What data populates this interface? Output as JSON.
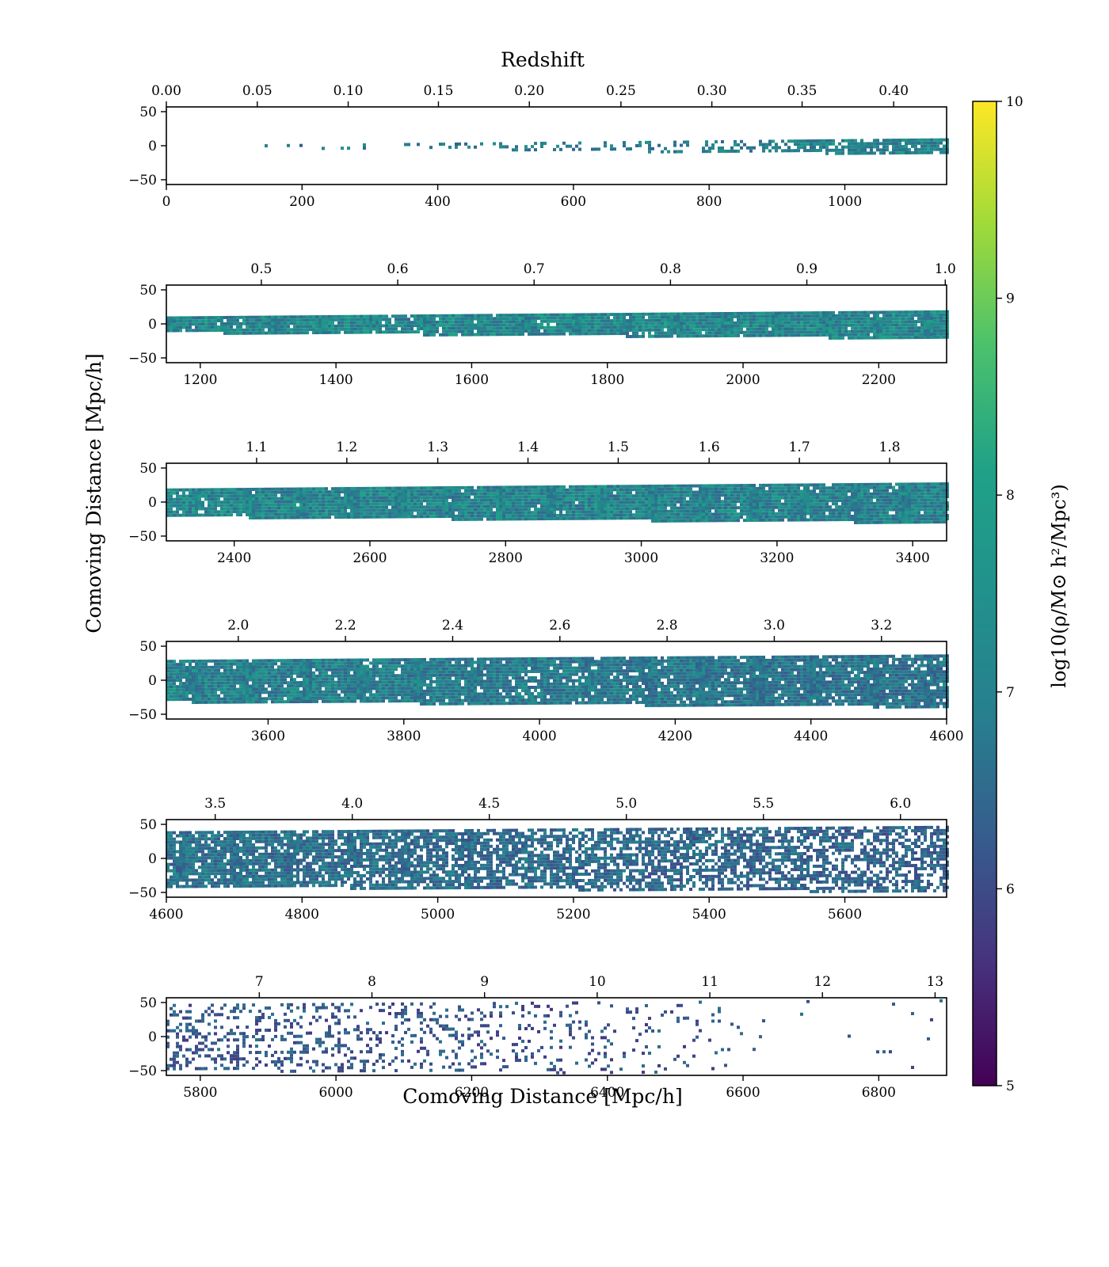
{
  "figure": {
    "top_axis_label": "Redshift",
    "y_axis_label": "Comoving Distance [Mpc/h]",
    "x_axis_label": "Comoving Distance [Mpc/h]",
    "colorbar": {
      "label": "log10(ρ/M⊙ h²/Mpc³)",
      "colormap": "viridis",
      "range": [
        5,
        10
      ],
      "ticks": [
        "5",
        "6",
        "7",
        "8",
        "9",
        "10"
      ]
    }
  },
  "chart_data": [
    {
      "type": "heatmap",
      "panel": 1,
      "xlim": [
        0,
        1150
      ],
      "ylim": [
        -57,
        57
      ],
      "x_ticks": [
        {
          "v": 0,
          "l": "0"
        },
        {
          "v": 200,
          "l": "200"
        },
        {
          "v": 400,
          "l": "400"
        },
        {
          "v": 600,
          "l": "600"
        },
        {
          "v": 800,
          "l": "800"
        },
        {
          "v": 1000,
          "l": "1000"
        }
      ],
      "y_ticks": [
        {
          "v": 50,
          "l": "50"
        },
        {
          "v": 0,
          "l": "0"
        },
        {
          "v": -50,
          "l": "−50"
        }
      ],
      "top_ticks": [
        {
          "v": 0,
          "l": "0.00"
        },
        {
          "v": 134,
          "l": "0.05"
        },
        {
          "v": 268,
          "l": "0.10"
        },
        {
          "v": 401,
          "l": "0.15"
        },
        {
          "v": 535,
          "l": "0.20"
        },
        {
          "v": 670,
          "l": "0.25"
        },
        {
          "v": 804,
          "l": "0.30"
        },
        {
          "v": 937,
          "l": "0.35"
        },
        {
          "v": 1072,
          "l": "0.40"
        }
      ],
      "band_start": 70,
      "band_halfwidth": [
        1,
        11
      ],
      "fill": [
        0.05,
        0.95
      ],
      "mean_log_density": [
        6.9,
        7.3
      ],
      "gap": [
        770,
        785
      ]
    },
    {
      "type": "heatmap",
      "panel": 2,
      "xlim": [
        1150,
        2300
      ],
      "ylim": [
        -57,
        57
      ],
      "x_ticks": [
        {
          "v": 1200,
          "l": "1200"
        },
        {
          "v": 1400,
          "l": "1400"
        },
        {
          "v": 1600,
          "l": "1600"
        },
        {
          "v": 1800,
          "l": "1800"
        },
        {
          "v": 2000,
          "l": "2000"
        },
        {
          "v": 2200,
          "l": "2200"
        }
      ],
      "y_ticks": [
        {
          "v": 50,
          "l": "50"
        },
        {
          "v": 0,
          "l": "0"
        },
        {
          "v": -50,
          "l": "−50"
        }
      ],
      "top_ticks": [
        {
          "v": 1290,
          "l": "0.5"
        },
        {
          "v": 1491,
          "l": "0.6"
        },
        {
          "v": 1692,
          "l": "0.7"
        },
        {
          "v": 1893,
          "l": "0.8"
        },
        {
          "v": 2094,
          "l": "0.9"
        },
        {
          "v": 2298,
          "l": "1.0"
        }
      ],
      "band_start": 1150,
      "band_halfwidth": [
        11,
        20
      ],
      "fill": [
        0.95,
        0.97
      ],
      "mean_log_density": [
        7.3,
        7.3
      ]
    },
    {
      "type": "heatmap",
      "panel": 3,
      "xlim": [
        2300,
        3450
      ],
      "ylim": [
        -57,
        57
      ],
      "x_ticks": [
        {
          "v": 2400,
          "l": "2400"
        },
        {
          "v": 2600,
          "l": "2600"
        },
        {
          "v": 2800,
          "l": "2800"
        },
        {
          "v": 3000,
          "l": "3000"
        },
        {
          "v": 3200,
          "l": "3200"
        },
        {
          "v": 3400,
          "l": "3400"
        }
      ],
      "y_ticks": [
        {
          "v": 50,
          "l": "50"
        },
        {
          "v": 0,
          "l": "0"
        },
        {
          "v": -50,
          "l": "−50"
        }
      ],
      "top_ticks": [
        {
          "v": 2433,
          "l": "1.1"
        },
        {
          "v": 2566,
          "l": "1.2"
        },
        {
          "v": 2700,
          "l": "1.3"
        },
        {
          "v": 2833,
          "l": "1.4"
        },
        {
          "v": 2966,
          "l": "1.5"
        },
        {
          "v": 3100,
          "l": "1.6"
        },
        {
          "v": 3233,
          "l": "1.7"
        },
        {
          "v": 3366,
          "l": "1.8"
        }
      ],
      "band_start": 2300,
      "band_halfwidth": [
        20,
        29
      ],
      "fill": [
        0.97,
        0.97
      ],
      "mean_log_density": [
        7.3,
        7.2
      ]
    },
    {
      "type": "heatmap",
      "panel": 4,
      "xlim": [
        3450,
        4600
      ],
      "ylim": [
        -57,
        57
      ],
      "x_ticks": [
        {
          "v": 3600,
          "l": "3600"
        },
        {
          "v": 3800,
          "l": "3800"
        },
        {
          "v": 4000,
          "l": "4000"
        },
        {
          "v": 4200,
          "l": "4200"
        },
        {
          "v": 4400,
          "l": "4400"
        },
        {
          "v": 4600,
          "l": "4600"
        }
      ],
      "y_ticks": [
        {
          "v": 50,
          "l": "50"
        },
        {
          "v": 0,
          "l": "0"
        },
        {
          "v": -50,
          "l": "−50"
        }
      ],
      "top_ticks": [
        {
          "v": 3556,
          "l": "2.0"
        },
        {
          "v": 3714,
          "l": "2.2"
        },
        {
          "v": 3872,
          "l": "2.4"
        },
        {
          "v": 4030,
          "l": "2.6"
        },
        {
          "v": 4188,
          "l": "2.8"
        },
        {
          "v": 4346,
          "l": "3.0"
        },
        {
          "v": 4504,
          "l": "3.2"
        }
      ],
      "band_start": 3450,
      "band_halfwidth": [
        30,
        38
      ],
      "fill": [
        0.97,
        0.9
      ],
      "mean_log_density": [
        7.2,
        6.9
      ]
    },
    {
      "type": "heatmap",
      "panel": 5,
      "xlim": [
        4600,
        5750
      ],
      "ylim": [
        -57,
        57
      ],
      "x_ticks": [
        {
          "v": 4600,
          "l": "4600"
        },
        {
          "v": 4800,
          "l": "4800"
        },
        {
          "v": 5000,
          "l": "5000"
        },
        {
          "v": 5200,
          "l": "5200"
        },
        {
          "v": 5400,
          "l": "5400"
        },
        {
          "v": 5600,
          "l": "5600"
        }
      ],
      "y_ticks": [
        {
          "v": 50,
          "l": "50"
        },
        {
          "v": 0,
          "l": "0"
        },
        {
          "v": -50,
          "l": "−50"
        }
      ],
      "top_ticks": [
        {
          "v": 4672,
          "l": "3.5"
        },
        {
          "v": 4874,
          "l": "4.0"
        },
        {
          "v": 5076,
          "l": "4.5"
        },
        {
          "v": 5278,
          "l": "5.0"
        },
        {
          "v": 5480,
          "l": "5.5"
        },
        {
          "v": 5682,
          "l": "6.0"
        }
      ],
      "band_start": 4600,
      "band_halfwidth": [
        40,
        48
      ],
      "fill": [
        0.88,
        0.55
      ],
      "mean_log_density": [
        6.9,
        6.6
      ]
    },
    {
      "type": "heatmap",
      "panel": 6,
      "xlim": [
        5750,
        6900
      ],
      "ylim": [
        -57,
        57
      ],
      "x_ticks": [
        {
          "v": 5800,
          "l": "5800"
        },
        {
          "v": 6000,
          "l": "6000"
        },
        {
          "v": 6200,
          "l": "6200"
        },
        {
          "v": 6400,
          "l": "6400"
        },
        {
          "v": 6600,
          "l": "6600"
        },
        {
          "v": 6800,
          "l": "6800"
        }
      ],
      "y_ticks": [
        {
          "v": 50,
          "l": "50"
        },
        {
          "v": 0,
          "l": "0"
        },
        {
          "v": -50,
          "l": "−50"
        }
      ],
      "top_ticks": [
        {
          "v": 5887,
          "l": "7"
        },
        {
          "v": 6053,
          "l": "8"
        },
        {
          "v": 6219,
          "l": "9"
        },
        {
          "v": 6385,
          "l": "10"
        },
        {
          "v": 6551,
          "l": "11"
        },
        {
          "v": 6717,
          "l": "12"
        },
        {
          "v": 6883,
          "l": "13"
        }
      ],
      "band_start": 5750,
      "band_halfwidth": [
        48,
        55
      ],
      "fill": [
        0.35,
        0.0
      ],
      "fill_end": 6670,
      "mean_log_density": [
        6.4,
        6.3
      ]
    }
  ]
}
